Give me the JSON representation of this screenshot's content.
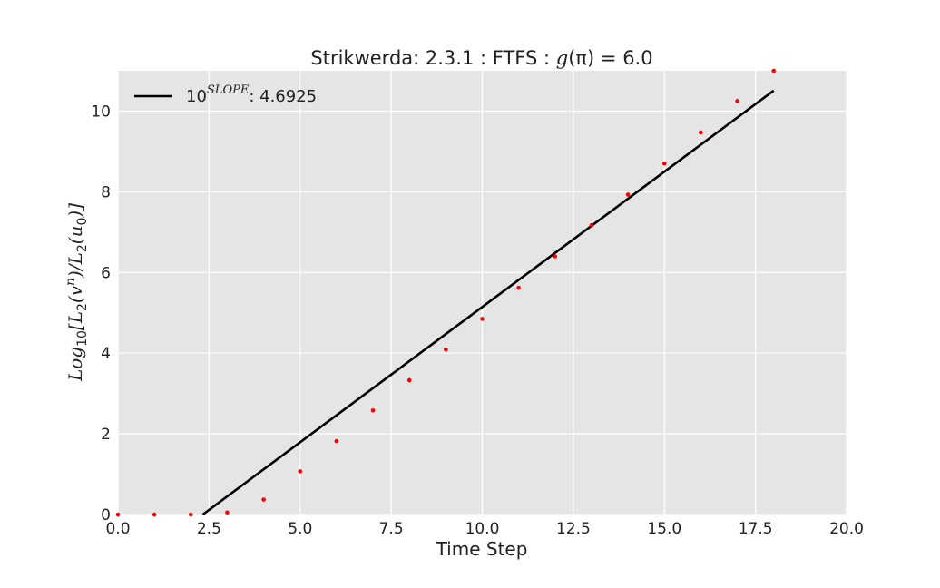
{
  "chart_data": {
    "type": "scatter",
    "title_prefix": "Strikwerda: 2.3.1 : FTFS : ",
    "title_math": "g",
    "title_paren": "(π)",
    "title_suffix": " = 6.0",
    "xlabel": "Time Step",
    "ylabel_parts": {
      "log": "Log",
      "log_sub": "10",
      "l2a": "[L",
      "l2a_sub": "2",
      "vpart": "(v",
      "vsup": "n",
      "mid": ")/L",
      "l2b_sub": "2",
      "upart": "(u",
      "u_sub": "0",
      "end": ")]"
    },
    "xlim": [
      0,
      20
    ],
    "ylim": [
      0,
      11
    ],
    "x_ticks": [
      0,
      2.5,
      5,
      7.5,
      10,
      12.5,
      15,
      17.5,
      20
    ],
    "x_tick_labels": [
      "0.0",
      "2.5",
      "5.0",
      "7.5",
      "10.0",
      "12.5",
      "15.0",
      "17.5",
      "20.0"
    ],
    "y_ticks": [
      0,
      2,
      4,
      6,
      8,
      10
    ],
    "y_tick_labels": [
      "0",
      "2",
      "4",
      "6",
      "8",
      "10"
    ],
    "grid": true,
    "legend_position": "top-left",
    "series": [
      {
        "name": "data",
        "style": "points",
        "color": "#ff0000",
        "x": [
          0,
          1,
          2,
          3,
          4,
          5,
          6,
          7,
          8,
          9,
          10,
          11,
          12,
          13,
          14,
          15,
          16,
          17,
          18
        ],
        "y": [
          0.0,
          0.0,
          0.0,
          0.05,
          0.37,
          1.07,
          1.82,
          2.58,
          3.33,
          4.09,
          4.85,
          5.62,
          6.4,
          7.17,
          7.93,
          8.7,
          9.47,
          10.25,
          11.0
        ]
      },
      {
        "name": "fit",
        "style": "line",
        "color": "#000000",
        "legend_base": "10",
        "legend_sup": "SLOPE",
        "legend_value": ": 4.6925",
        "x": [
          2.33,
          18
        ],
        "y": [
          0.0,
          10.51
        ]
      }
    ]
  },
  "colors": {
    "plot_background": "#e5e5e5",
    "grid": "#ffffff",
    "points": "#ff0000",
    "line": "#000000",
    "text": "#222222"
  }
}
